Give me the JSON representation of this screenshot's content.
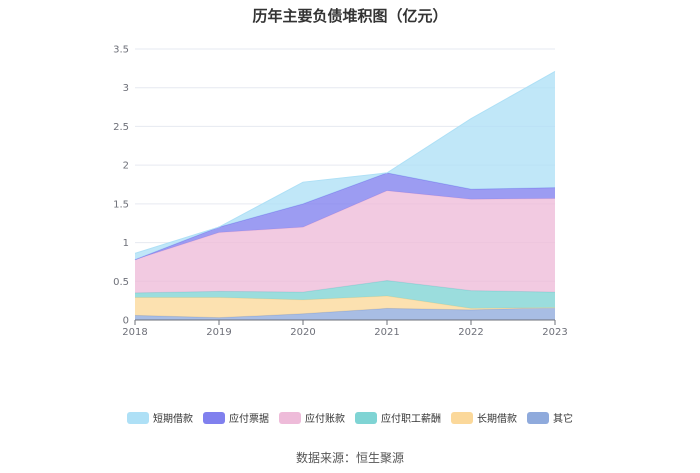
{
  "chart_data": {
    "type": "area",
    "stacked": true,
    "title": "历年主要负债堆积图（亿元）",
    "x": [
      "2018",
      "2019",
      "2020",
      "2021",
      "2022",
      "2023"
    ],
    "ylim": [
      0,
      3.5
    ],
    "yticks": [
      "0",
      "0.5",
      "1",
      "1.5",
      "2",
      "2.5",
      "3",
      "3.5"
    ],
    "grid": true,
    "legend_position": "bottom",
    "series": [
      {
        "name": "其它",
        "color": "#8faadc",
        "values": [
          0.06,
          0.03,
          0.08,
          0.15,
          0.13,
          0.16
        ]
      },
      {
        "name": "长期借款",
        "color": "#fbd89a",
        "values": [
          0.23,
          0.26,
          0.18,
          0.16,
          0.02,
          0.0
        ]
      },
      {
        "name": "应付职工薪酬",
        "color": "#7fd4d4",
        "values": [
          0.06,
          0.08,
          0.1,
          0.2,
          0.23,
          0.2
        ]
      },
      {
        "name": "应付账款",
        "color": "#eebbd9",
        "values": [
          0.43,
          0.76,
          0.84,
          1.16,
          1.18,
          1.21
        ]
      },
      {
        "name": "应付票据",
        "color": "#8080ee",
        "values": [
          0.0,
          0.07,
          0.3,
          0.23,
          0.13,
          0.14
        ]
      },
      {
        "name": "短期借款",
        "color": "#aee0f6",
        "values": [
          0.08,
          0.0,
          0.28,
          0.0,
          0.91,
          1.5
        ]
      }
    ]
  },
  "legend_order": [
    "短期借款",
    "应付票据",
    "应付账款",
    "应付职工薪酬",
    "长期借款",
    "其它"
  ],
  "source": "数据来源：恒生聚源"
}
